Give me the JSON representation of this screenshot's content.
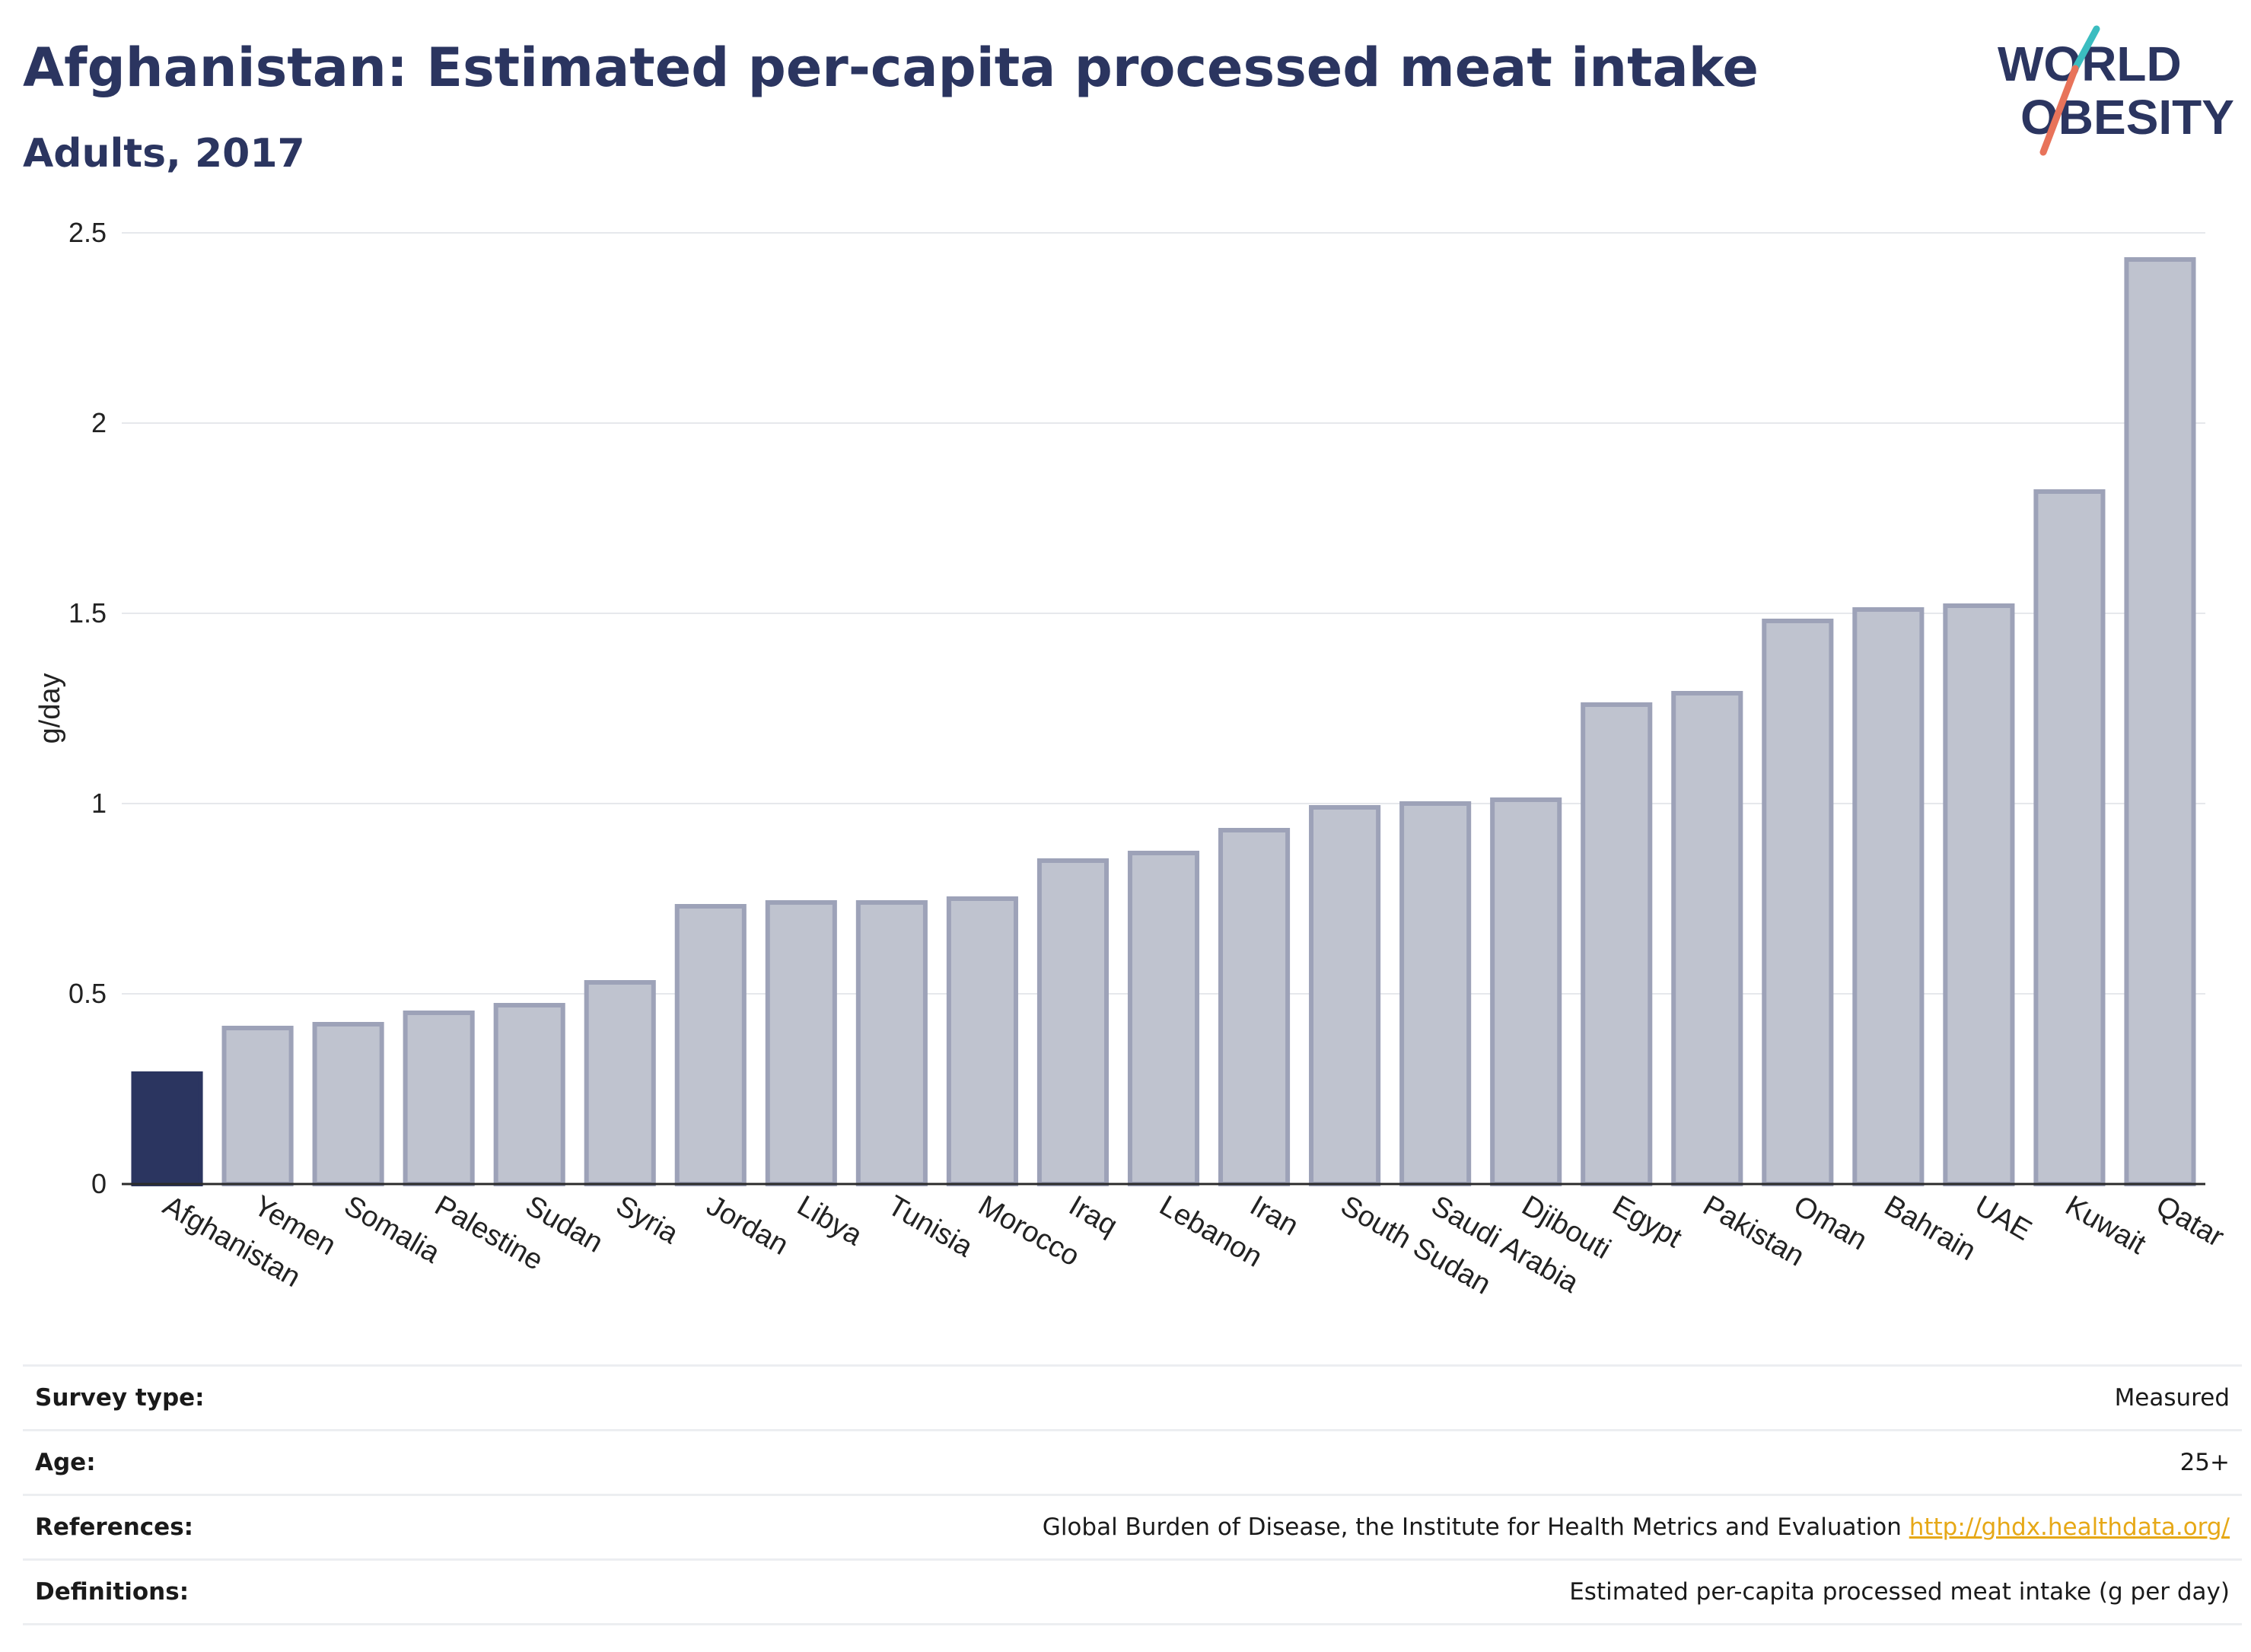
{
  "title": "Afghanistan: Estimated per-capita processed meat intake",
  "subtitle": "Adults, 2017",
  "logo": {
    "line1": "WORLD",
    "line2": "OBESITY"
  },
  "colors": {
    "highlight": "#2b3560",
    "bar_fill": "#bfc3cf",
    "bar_stroke": "#9da2b8",
    "title": "#2b3560",
    "link": "#e6a817",
    "logo_teal": "#3bbdc0",
    "logo_coral": "#e8735a"
  },
  "chart_data": {
    "type": "bar",
    "title": "Afghanistan: Estimated per-capita processed meat intake",
    "subtitle": "Adults, 2017",
    "xlabel": "",
    "ylabel": "g/day",
    "ylim": [
      0,
      2.5
    ],
    "yticks": [
      0,
      0.5,
      1,
      1.5,
      2,
      2.5
    ],
    "ytick_labels": [
      "0",
      "0.5",
      "1",
      "1.5",
      "2",
      "2.5"
    ],
    "grid": true,
    "highlight_category": "Afghanistan",
    "categories": [
      "Afghanistan",
      "Yemen",
      "Somalia",
      "Palestine",
      "Sudan",
      "Syria",
      "Jordan",
      "Libya",
      "Tunisia",
      "Morocco",
      "Iraq",
      "Lebanon",
      "Iran",
      "South Sudan",
      "Saudi Arabia",
      "Djibouti",
      "Egypt",
      "Pakistan",
      "Oman",
      "Bahrain",
      "UAE",
      "Kuwait",
      "Qatar"
    ],
    "values": [
      0.29,
      0.41,
      0.42,
      0.45,
      0.47,
      0.53,
      0.73,
      0.74,
      0.74,
      0.75,
      0.85,
      0.87,
      0.93,
      0.99,
      1.0,
      1.01,
      1.26,
      1.29,
      1.48,
      1.51,
      1.52,
      1.82,
      2.43
    ]
  },
  "info": [
    {
      "label": "Survey type:",
      "value": "Measured"
    },
    {
      "label": "Age:",
      "value": "25+"
    },
    {
      "label": "References:",
      "value": "Global Burden of Disease, the Institute for Health Metrics and Evaluation",
      "link": "http://ghdx.healthdata.org/"
    },
    {
      "label": "Definitions:",
      "value": "Estimated per-capita processed meat intake (g per day)"
    }
  ]
}
